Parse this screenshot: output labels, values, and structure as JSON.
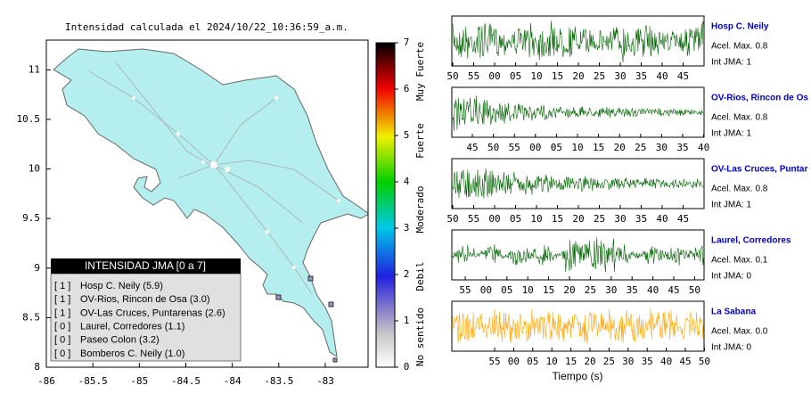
{
  "map": {
    "title": "Intensidad calculada el 2024/10/22_10:36:59_a.m.",
    "xlim": [
      -86,
      -82.54
    ],
    "xticks": [
      -86,
      -85.5,
      -85,
      -84.5,
      -84,
      -83.5,
      -83
    ],
    "ylim": [
      8,
      11.3
    ],
    "yticks": [
      8,
      8.5,
      9,
      9.5,
      10,
      10.5,
      11
    ],
    "legend": {
      "title": "INTENSIDAD JMA [0 a 7]",
      "items": [
        {
          "level": "[ 1 ]",
          "name": "Hosp C. Neily (5.9)"
        },
        {
          "level": "[ 1 ]",
          "name": "OV-Rios, Rincon de Osa (3.0)"
        },
        {
          "level": "[ 1 ]",
          "name": "OV-Las Cruces, Puntarenas (2.6)"
        },
        {
          "level": "[ 0 ]",
          "name": "Laurel, Corredores (1.1)"
        },
        {
          "level": "[ 0 ]",
          "name": "Paseo Colon (3.2)"
        },
        {
          "level": "[ 0 ]",
          "name": "Bomberos C. Neily (1.0)"
        }
      ]
    }
  },
  "colorbar": {
    "ylim": [
      0,
      7
    ],
    "yticks": [
      0,
      1,
      2,
      3,
      4,
      5,
      6,
      7
    ],
    "labels": [
      "No sentido",
      "Debil",
      "Moderado",
      "Fuerte",
      "Muy Fuerte"
    ]
  },
  "stations": [
    {
      "name": "Hosp C. Neily",
      "acel": "Acel. Max. 0.8",
      "jma": "Int JMA: 1",
      "color": "#006400",
      "ticks": [
        "50",
        "55",
        "00",
        "05",
        "10",
        "15",
        "20",
        "25",
        "30",
        "35",
        "40",
        "45"
      ]
    },
    {
      "name": "OV-Rios, Rincon de Os",
      "acel": "Acel. Max. 0.8",
      "jma": "Int JMA: 1",
      "color": "#006400",
      "ticks": [
        "45",
        "50",
        "55",
        "00",
        "05",
        "10",
        "15",
        "20",
        "25",
        "30",
        "35",
        "40"
      ]
    },
    {
      "name": "OV-Las Cruces, Puntar",
      "acel": "Acel. Max. 0.8",
      "jma": "Int JMA: 1",
      "color": "#006400",
      "ticks": [
        "50",
        "55",
        "00",
        "05",
        "10",
        "15",
        "20",
        "25",
        "30",
        "35",
        "40",
        "45"
      ]
    },
    {
      "name": "Laurel, Corredores",
      "acel": "Acel. Max. 0.1",
      "jma": "Int JMA: 0",
      "color": "#006400",
      "ticks": [
        "55",
        "00",
        "05",
        "10",
        "15",
        "20",
        "25",
        "30",
        "35",
        "40",
        "45",
        "50"
      ]
    },
    {
      "name": "La Sabana",
      "acel": "Acel. Max. 0.0",
      "jma": "Int JMA: 0",
      "color": "#ffa500",
      "ticks": [
        "55",
        "00",
        "05",
        "10",
        "15",
        "20",
        "25",
        "30",
        "35",
        "40",
        "45",
        "50"
      ]
    }
  ],
  "xlabel": "Tiempo (s)"
}
